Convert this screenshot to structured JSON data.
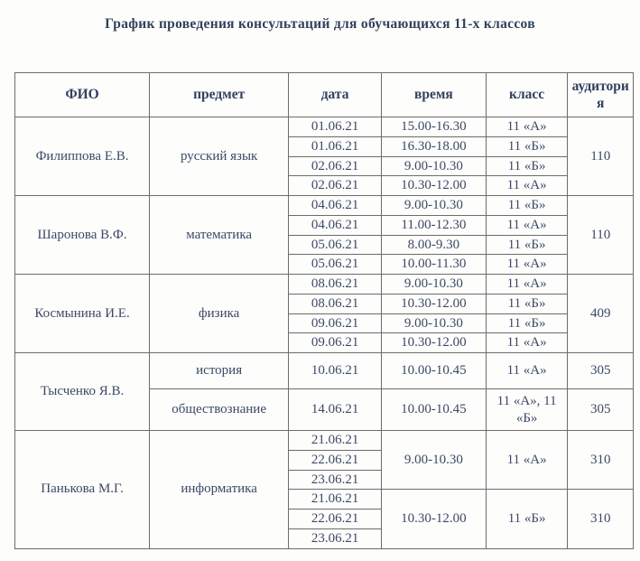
{
  "page": {
    "title": "График проведения консультаций для обучающихся 11-х классов"
  },
  "colors": {
    "text": "#3c4866",
    "border": "#6c6c6c",
    "background": "#fdfdfb"
  },
  "table": {
    "headers": {
      "fio": "ФИО",
      "subject": "предмет",
      "date": "дата",
      "time": "время",
      "class": "класс",
      "room": "аудитория"
    },
    "sections": [
      {
        "teacher": "Филиппова Е.В.",
        "subject": "русский язык",
        "room": "110",
        "rows": [
          {
            "date": "01.06.21",
            "time": "15.00-16.30",
            "class": "11 «А»"
          },
          {
            "date": "01.06.21",
            "time": "16.30-18.00",
            "class": "11 «Б»"
          },
          {
            "date": "02.06.21",
            "time": "9.00-10.30",
            "class": "11 «Б»"
          },
          {
            "date": "02.06.21",
            "time": "10.30-12.00",
            "class": "11 «А»"
          }
        ]
      },
      {
        "teacher": "Шаронова В.Ф.",
        "subject": "математика",
        "room": "110",
        "rows": [
          {
            "date": "04.06.21",
            "time": "9.00-10.30",
            "class": "11 «Б»"
          },
          {
            "date": "04.06.21",
            "time": "11.00-12.30",
            "class": "11 «А»"
          },
          {
            "date": "05.06.21",
            "time": "8.00-9.30",
            "class": "11 «Б»"
          },
          {
            "date": "05.06.21",
            "time": "10.00-11.30",
            "class": "11 «А»"
          }
        ]
      },
      {
        "teacher": "Космынина И.Е.",
        "subject": "физика",
        "room": "409",
        "rows": [
          {
            "date": "08.06.21",
            "time": "9.00-10.30",
            "class": "11 «А»"
          },
          {
            "date": "08.06.21",
            "time": "10.30-12.00",
            "class": "11 «Б»"
          },
          {
            "date": "09.06.21",
            "time": "9.00-10.30",
            "class": "11 «Б»"
          },
          {
            "date": "09.06.21",
            "time": "10.30-12.00",
            "class": "11 «А»"
          }
        ]
      },
      {
        "teacher": "Тысченко Я.В.",
        "rows": [
          {
            "subject": "история",
            "date": "10.06.21",
            "time": "10.00-10.45",
            "class": "11 «А»",
            "room": "305"
          },
          {
            "subject": "обществознание",
            "date": "14.06.21",
            "time": "10.00-10.45",
            "class": "11 «А», 11 «Б»",
            "room": "305"
          }
        ]
      },
      {
        "teacher": "Панькова М.Г.",
        "subject": "информатика",
        "groups": [
          {
            "dates": [
              "21.06.21",
              "22.06.21",
              "23.06.21"
            ],
            "time": "9.00-10.30",
            "class": "11 «А»",
            "room": "310"
          },
          {
            "dates": [
              "21.06.21",
              "22.06.21",
              "23.06.21"
            ],
            "time": "10.30-12.00",
            "class": "11 «Б»",
            "room": "310"
          }
        ]
      }
    ]
  }
}
